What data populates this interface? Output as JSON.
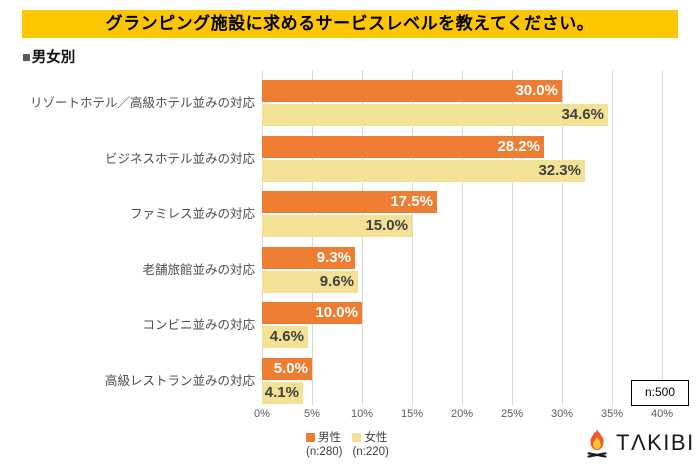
{
  "header": {
    "title": "グランピング施設に求めるサービスレベルを教えてください。",
    "bg_color": "#FBC600"
  },
  "section": {
    "marker": "■",
    "label": "男女別"
  },
  "chart_data": {
    "type": "bar",
    "orientation": "horizontal",
    "title": "グランピング施設に求めるサービスレベルを教えてください。",
    "subtitle": "男女別",
    "categories": [
      "リゾートホテル／高級ホテル並みの対応",
      "ビジネスホテル並みの対応",
      "ファミレス並みの対応",
      "老舗旅館並みの対応",
      "コンビニ並みの対応",
      "高級レストラン並みの対応"
    ],
    "series": [
      {
        "name": "男性",
        "n_label": "(n:280)",
        "color": "#ED7D31",
        "label_color": "#FFFFFF",
        "values": [
          30.0,
          28.2,
          17.5,
          9.3,
          10.0,
          5.0
        ]
      },
      {
        "name": "女性",
        "n_label": "(n:220)",
        "color": "#F3E296",
        "label_color": "#404040",
        "values": [
          34.6,
          32.3,
          15.0,
          9.6,
          4.6,
          4.1
        ]
      }
    ],
    "xlim": [
      0,
      40
    ],
    "x_ticks": [
      "0%",
      "5%",
      "10%",
      "15%",
      "20%",
      "25%",
      "30%",
      "35%",
      "40%"
    ],
    "grid": true,
    "legend_position": "bottom",
    "annotation": "n:500",
    "value_suffix": "%"
  },
  "footer": {
    "logo_text": "TΛKIBI"
  }
}
